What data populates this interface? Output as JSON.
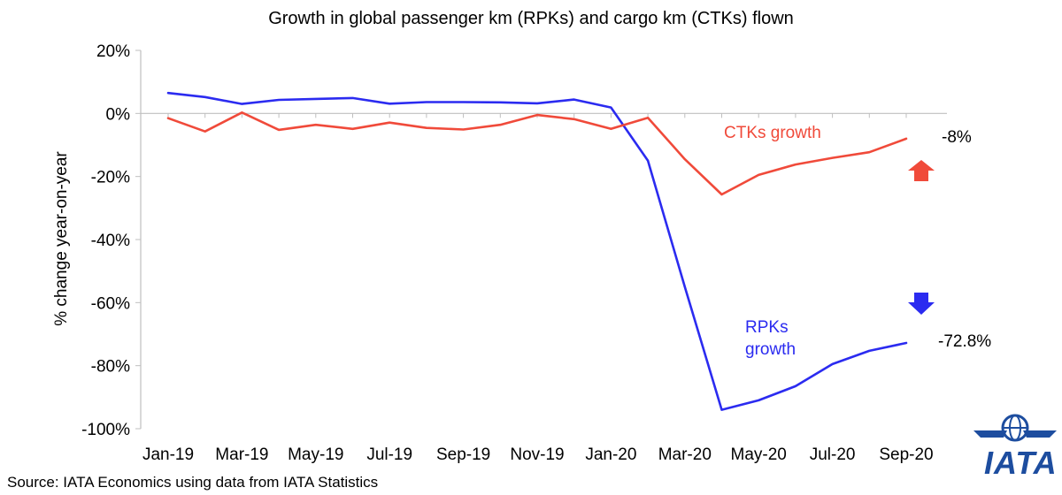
{
  "chart_data": {
    "type": "line",
    "title": "Growth in global passenger km (RPKs) and cargo km (CTKs) flown",
    "ylabel": "% change year-on-year",
    "xlabel": "",
    "ylim": [
      -100,
      20
    ],
    "y_ticks": [
      "20%",
      "0%",
      "-20%",
      "-40%",
      "-60%",
      "-80%",
      "-100%"
    ],
    "y_tick_values": [
      20,
      0,
      -20,
      -40,
      -60,
      -80,
      -100
    ],
    "categories": [
      "Jan-19",
      "Feb-19",
      "Mar-19",
      "Apr-19",
      "May-19",
      "Jun-19",
      "Jul-19",
      "Aug-19",
      "Sep-19",
      "Oct-19",
      "Nov-19",
      "Dec-19",
      "Jan-20",
      "Feb-20",
      "Mar-20",
      "Apr-20",
      "May-20",
      "Jun-20",
      "Jul-20",
      "Aug-20",
      "Sep-20"
    ],
    "x_tick_labels": [
      "Jan-19",
      "Mar-19",
      "May-19",
      "Jul-19",
      "Sep-19",
      "Nov-19",
      "Jan-20",
      "Mar-20",
      "May-20",
      "Jul-20",
      "Sep-20"
    ],
    "series": [
      {
        "name": "RPKs growth",
        "color": "#2b2bf0",
        "values": [
          6.5,
          5.2,
          3.0,
          4.3,
          4.6,
          4.9,
          3.1,
          3.6,
          3.6,
          3.5,
          3.2,
          4.4,
          1.9,
          -15,
          -55,
          -94,
          -91,
          -86.5,
          -79.5,
          -75.3,
          -72.8
        ]
      },
      {
        "name": "CTKs growth",
        "color": "#f04a3a",
        "values": [
          -1.5,
          -5.7,
          0.3,
          -5.2,
          -3.6,
          -4.9,
          -2.9,
          -4.6,
          -5.1,
          -3.6,
          -0.5,
          -1.8,
          -4.9,
          -1.4,
          -14.5,
          -25.7,
          -19.5,
          -16.2,
          -14.1,
          -12.3,
          -8.0
        ]
      }
    ],
    "end_labels": {
      "ctk": "-8%",
      "rpk": "-72.8%"
    },
    "series_labels": {
      "ctk": "CTKs growth",
      "rpk_line1": "RPKs",
      "rpk_line2": "growth"
    },
    "grid": false
  },
  "source": "Source: IATA Economics using data from IATA Statistics",
  "logo": {
    "text": "IATA",
    "color": "#1d4d9f"
  },
  "colors": {
    "up_arrow": "#f04a3a",
    "down_arrow": "#2b2bf0"
  }
}
